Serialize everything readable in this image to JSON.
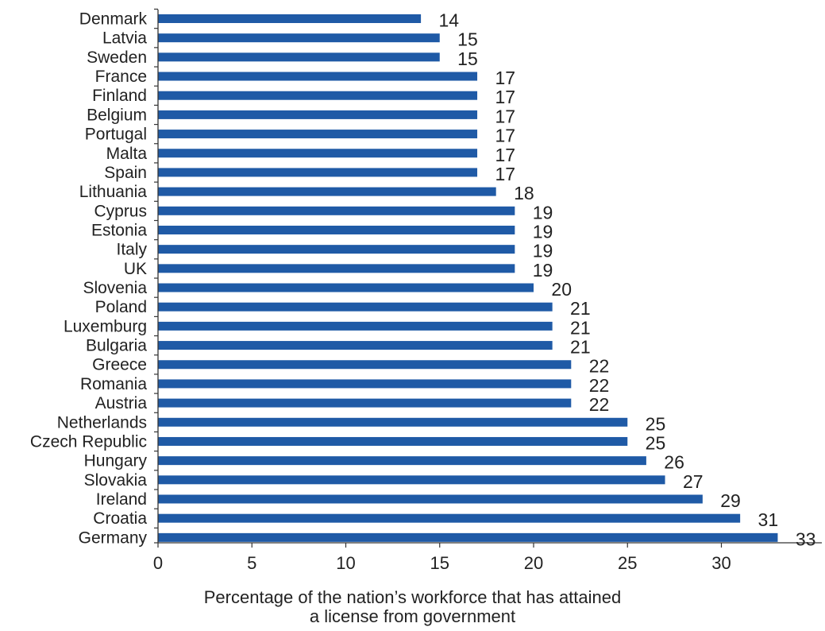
{
  "chart_data": {
    "type": "bar",
    "orientation": "horizontal",
    "categories": [
      "Denmark",
      "Latvia",
      "Sweden",
      "France",
      "Finland",
      "Belgium",
      "Portugal",
      "Malta",
      "Spain",
      "Lithuania",
      "Cyprus",
      "Estonia",
      "Italy",
      "UK",
      "Slovenia",
      "Poland",
      "Luxemburg",
      "Bulgaria",
      "Greece",
      "Romania",
      "Austria",
      "Netherlands",
      "Czech Republic",
      "Hungary",
      "Slovakia",
      "Ireland",
      "Croatia",
      "Germany"
    ],
    "values": [
      14,
      15,
      15,
      17,
      17,
      17,
      17,
      17,
      17,
      18,
      19,
      19,
      19,
      19,
      20,
      21,
      21,
      21,
      22,
      22,
      22,
      25,
      25,
      26,
      27,
      29,
      31,
      33
    ],
    "value_labels": [
      "14",
      "15",
      "15",
      "17",
      "17",
      "17",
      "17",
      "17",
      "17",
      "18",
      "19",
      "19",
      "19",
      "19",
      "20",
      "21",
      "21",
      "21",
      "22",
      "22",
      "22",
      "25",
      "25",
      "26",
      "27",
      "29",
      "31",
      "33"
    ],
    "xticks": [
      0,
      5,
      10,
      15,
      20,
      25,
      30
    ],
    "xtick_labels": [
      "0",
      "5",
      "10",
      "15",
      "20",
      "25",
      "30"
    ],
    "xlim": [
      0,
      35
    ],
    "xlabel_lines": [
      "Percentage of the nation’s workforce that has attained",
      "a license from government"
    ],
    "ylabel": "",
    "title": "",
    "grid": false,
    "legend": "none",
    "bar_color": "#1F5AA6",
    "text_color": "#222222",
    "axis_color": "#333333"
  }
}
